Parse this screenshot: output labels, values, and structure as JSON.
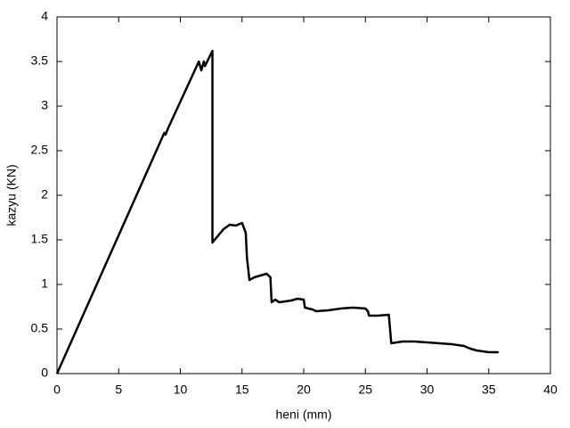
{
  "chart_data": {
    "type": "line",
    "xlabel": "heni (mm)",
    "ylabel": "kazyu (KN)",
    "xlim": [
      0,
      40
    ],
    "xticks": [
      0,
      5,
      10,
      15,
      20,
      25,
      30,
      35,
      40
    ],
    "ylim": [
      0,
      4
    ],
    "yticks": [
      0,
      0.5,
      1,
      1.5,
      2,
      2.5,
      3,
      3.5,
      4
    ],
    "grid": false,
    "series": [
      {
        "color": "#000000",
        "x": [
          0,
          8.7,
          8.8,
          9,
          11.5,
          11.7,
          11.9,
          12.0,
          12.6,
          12.6,
          13.5,
          14,
          14.5,
          15,
          15.3,
          15.4,
          15.6,
          16,
          16.5,
          17,
          17.3,
          17.4,
          17.7,
          18,
          19,
          19.5,
          20,
          20.1,
          20.7,
          21,
          22,
          23,
          24,
          25,
          25.2,
          25.3,
          26,
          26.9,
          27.0,
          27.1,
          28,
          29,
          30,
          31,
          32,
          33,
          33.5,
          34,
          35,
          35.8
        ],
        "values": [
          0,
          2.7,
          2.68,
          2.75,
          3.5,
          3.4,
          3.5,
          3.45,
          3.62,
          1.47,
          1.62,
          1.67,
          1.66,
          1.69,
          1.58,
          1.3,
          1.05,
          1.08,
          1.1,
          1.12,
          1.08,
          0.8,
          0.83,
          0.8,
          0.82,
          0.84,
          0.83,
          0.74,
          0.72,
          0.7,
          0.71,
          0.73,
          0.74,
          0.73,
          0.7,
          0.65,
          0.65,
          0.66,
          0.5,
          0.34,
          0.36,
          0.36,
          0.35,
          0.34,
          0.33,
          0.31,
          0.28,
          0.26,
          0.24,
          0.24
        ]
      }
    ]
  }
}
